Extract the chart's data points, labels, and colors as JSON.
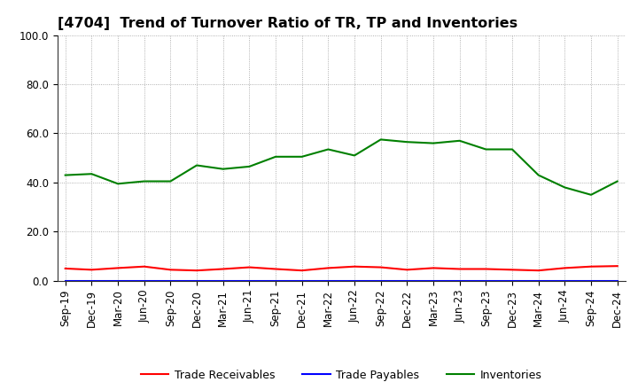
{
  "title": "[4704]  Trend of Turnover Ratio of TR, TP and Inventories",
  "xlabels": [
    "Sep-19",
    "Dec-19",
    "Mar-20",
    "Jun-20",
    "Sep-20",
    "Dec-20",
    "Mar-21",
    "Jun-21",
    "Sep-21",
    "Dec-21",
    "Mar-22",
    "Jun-22",
    "Sep-22",
    "Dec-22",
    "Mar-23",
    "Jun-23",
    "Sep-23",
    "Dec-23",
    "Mar-24",
    "Jun-24",
    "Sep-24",
    "Dec-24"
  ],
  "ylim": [
    0.0,
    100.0
  ],
  "yticks": [
    0.0,
    20.0,
    40.0,
    60.0,
    80.0,
    100.0
  ],
  "trade_receivables": [
    5.0,
    4.5,
    5.2,
    5.8,
    4.5,
    4.2,
    4.8,
    5.5,
    4.8,
    4.2,
    5.2,
    5.8,
    5.5,
    4.5,
    5.2,
    4.8,
    4.8,
    4.5,
    4.2,
    5.2,
    5.8,
    6.0
  ],
  "trade_payables": [
    0.0,
    0.0,
    0.0,
    0.0,
    0.0,
    0.0,
    0.0,
    0.0,
    0.0,
    0.0,
    0.0,
    0.0,
    0.0,
    0.0,
    0.0,
    0.0,
    0.0,
    0.0,
    0.0,
    0.0,
    0.0,
    0.0
  ],
  "inventories": [
    43.0,
    43.5,
    39.5,
    40.5,
    40.5,
    47.0,
    45.5,
    46.5,
    50.5,
    50.5,
    53.5,
    51.0,
    57.5,
    56.5,
    56.0,
    57.0,
    53.5,
    53.5,
    43.0,
    38.0,
    35.0,
    40.5
  ],
  "tr_color": "#ff0000",
  "tp_color": "#0000ff",
  "inv_color": "#008000",
  "tr_label": "Trade Receivables",
  "tp_label": "Trade Payables",
  "inv_label": "Inventories",
  "background_color": "#ffffff",
  "grid_color": "#999999",
  "title_fontsize": 11.5,
  "axis_fontsize": 8.5,
  "legend_fontsize": 9
}
